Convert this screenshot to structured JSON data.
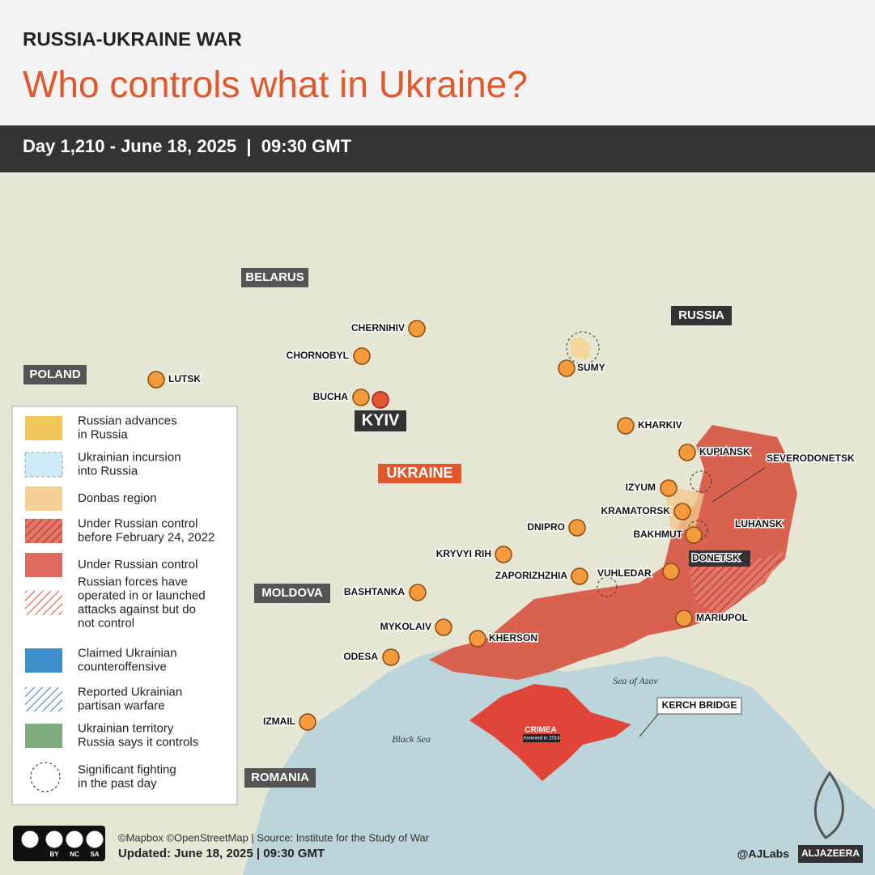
{
  "header": {
    "kicker": "RUSSIA-UKRAINE WAR",
    "title": "Who controls what in Ukraine?",
    "dateline": "Day 1,210 - June 18, 2025  |  09:30 GMT"
  },
  "map": {
    "countries": [
      "BELARUS",
      "POLAND",
      "RUSSIA",
      "UKRAINE",
      "MOLDOVA",
      "ROMANIA"
    ],
    "capital": "KYIV",
    "cities": [
      "CHERNIHIV",
      "CHORNOBYL",
      "LUTSK",
      "BUCHA",
      "SUMY",
      "KHARKIV",
      "KUPIANSK",
      "SEVERODONETSK",
      "IZYUM",
      "KRAMATORSK",
      "BAKHMUT",
      "LUHANSK",
      "DNIPRO",
      "KRYVYI RIH",
      "DONETSK",
      "ZAPORIZHZHIA",
      "VUHLEDAR",
      "BASHTANKA",
      "MYKOLAIV",
      "MARIUPOL",
      "KHERSON",
      "ODESA",
      "IZMAIL"
    ],
    "seas": [
      "Sea of Azov",
      "Black Sea"
    ],
    "crimea": {
      "label": "CRIMEA",
      "note": "Annexed in 2014"
    },
    "bridge": "KERCH BRIDGE"
  },
  "legend": [
    {
      "lines": [
        "Russian advances",
        "in Russia"
      ]
    },
    {
      "lines": [
        "Ukrainian incursion",
        "into Russia"
      ]
    },
    {
      "lines": [
        "Donbas region"
      ]
    },
    {
      "lines": [
        "Under Russian control",
        "before February 24, 2022"
      ]
    },
    {
      "lines": [
        "Under Russian control"
      ]
    },
    {
      "lines": [
        "Russian forces have",
        "operated in or launched",
        "attacks against but do",
        "not control"
      ]
    },
    {
      "lines": [
        "Claimed Ukrainian",
        "counteroffensive"
      ]
    },
    {
      "lines": [
        "Reported Ukrainian",
        "partisan warfare"
      ]
    },
    {
      "lines": [
        "Ukrainian territory",
        "Russia says it controls"
      ]
    },
    {
      "lines": [
        "Significant fighting",
        "in the past day"
      ]
    }
  ],
  "footer": {
    "license": [
      "BY",
      "NC",
      "SA"
    ],
    "credits": "©Mapbox ©OpenStreetMap | Source: Institute for the Study of War",
    "updated": "Updated: June 18, 2025  |  09:30 GMT",
    "handle": "@AJLabs",
    "brand": "ALJAZEERA"
  }
}
